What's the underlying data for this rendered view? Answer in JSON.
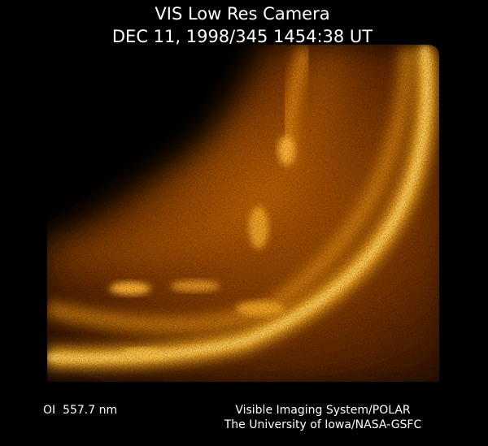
{
  "title": "VIS Low Res Camera",
  "timestamp": "DEC 11, 1998/345 1454:38 UT",
  "wavelength": "OI  557.7 nm",
  "credits": [
    "Visible Imaging System/POLAR",
    "The University of Iowa/NASA-GSFC"
  ]
}
